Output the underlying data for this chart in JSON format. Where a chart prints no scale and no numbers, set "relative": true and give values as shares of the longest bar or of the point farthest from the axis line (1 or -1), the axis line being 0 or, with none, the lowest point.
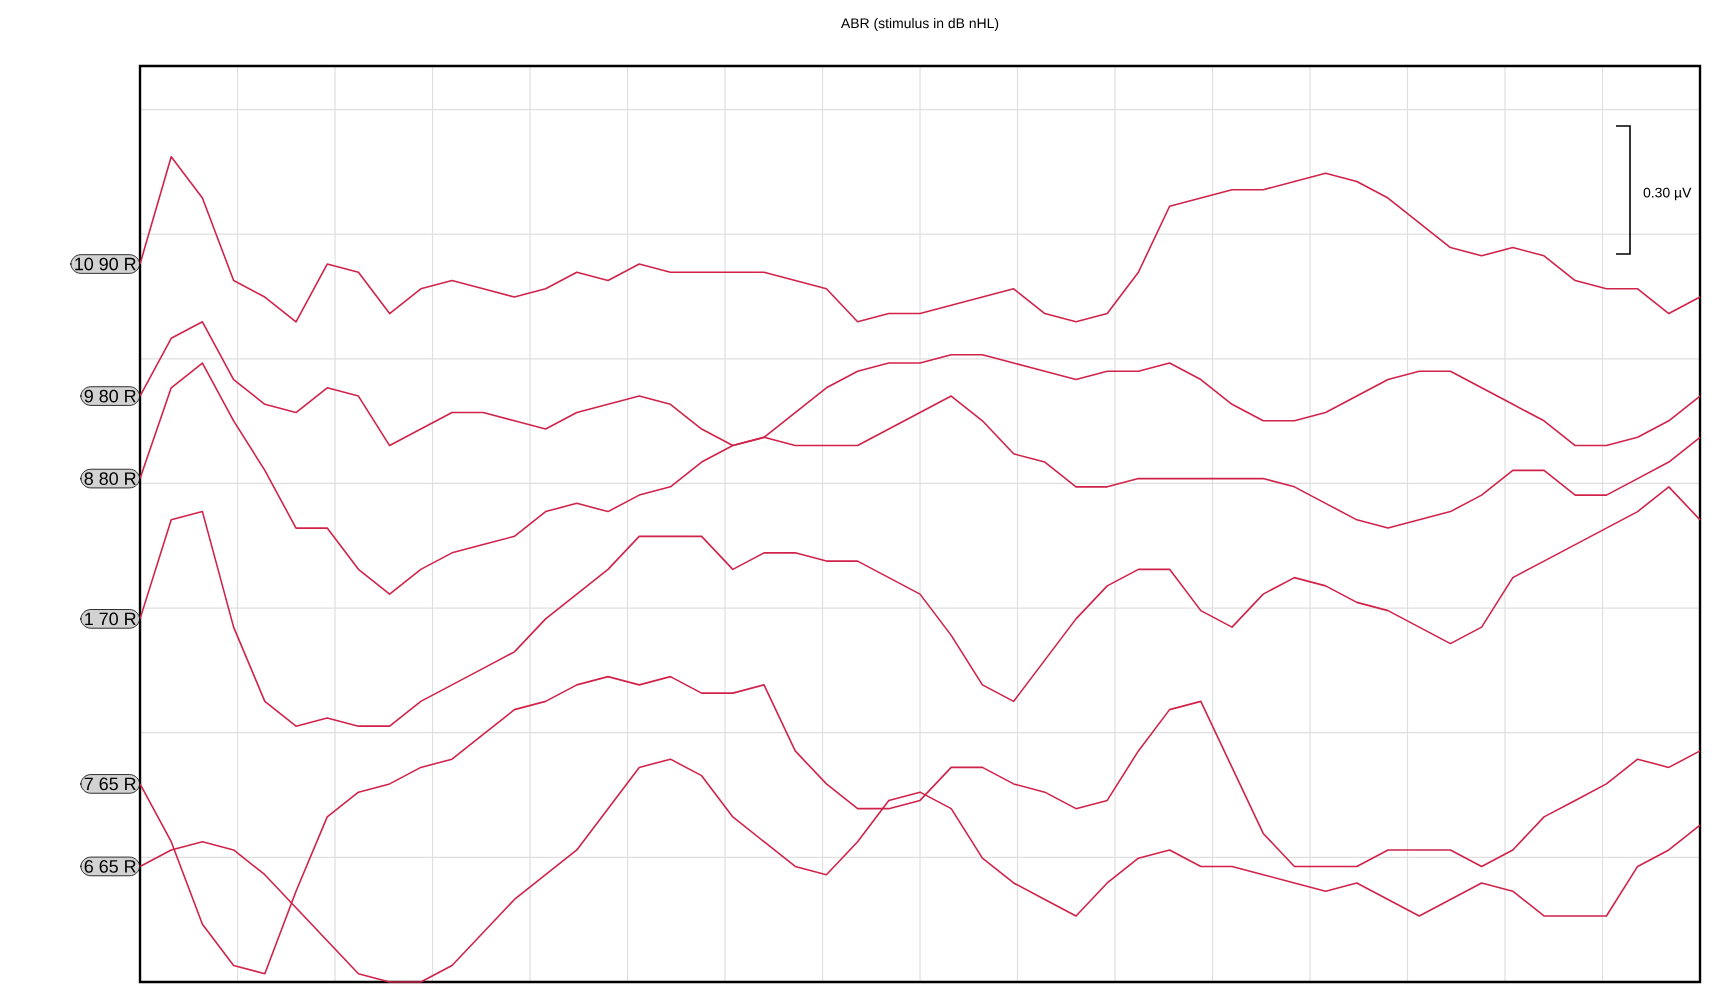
{
  "chart_data": {
    "type": "line",
    "title": "ABR (stimulus in dB nHL)",
    "relative": true,
    "grid": true,
    "legend": false,
    "marker": "none",
    "line_style": "solid",
    "annotations": [
      "0.30 µV"
    ],
    "categories": [
      null,
      null,
      null,
      null,
      null,
      null,
      null,
      null,
      null,
      null,
      null,
      null,
      null,
      null,
      null,
      null,
      null,
      null,
      null,
      null,
      null,
      null,
      null,
      null,
      null,
      null,
      null,
      null,
      null,
      null,
      null,
      null,
      null,
      null,
      null,
      null,
      null,
      null,
      null,
      null,
      null,
      null,
      null,
      null,
      null,
      null,
      null,
      null,
      null,
      null,
      null
    ],
    "series": [
      {
        "name": "10 90 R",
        "color": "#d0234a",
        "values": [
          0.87,
          1,
          0.95,
          0.85,
          0.83,
          0.8,
          0.87,
          0.86,
          0.81,
          0.84,
          0.85,
          0.84,
          0.83,
          0.84,
          0.86,
          0.85,
          0.87,
          0.86,
          0.86,
          0.86,
          0.86,
          0.85,
          0.84,
          0.8,
          0.81,
          0.81,
          0.82,
          0.83,
          0.84,
          0.81,
          0.8,
          0.81,
          0.86,
          0.94,
          0.95,
          0.96,
          0.96,
          0.97,
          0.98,
          0.97,
          0.95,
          0.92,
          0.89,
          0.88,
          0.89,
          0.88,
          0.85,
          0.84,
          0.84,
          0.81,
          0.83
        ]
      },
      {
        "name": "9 80 R",
        "color": "#d0234a",
        "values": [
          0.71,
          0.78,
          0.8,
          0.73,
          0.7,
          0.69,
          0.72,
          0.71,
          0.65,
          0.67,
          0.69,
          0.69,
          0.68,
          0.67,
          0.69,
          0.7,
          0.71,
          0.7,
          0.67,
          0.65,
          0.66,
          0.65,
          0.65,
          0.65,
          0.67,
          0.69,
          0.71,
          0.68,
          0.64,
          0.63,
          0.6,
          0.6,
          0.61,
          0.61,
          0.61,
          0.61,
          0.61,
          0.6,
          0.58,
          0.56,
          0.55,
          0.56,
          0.57,
          0.59,
          0.62,
          0.62,
          0.59,
          0.59,
          0.61,
          0.63,
          0.66
        ]
      },
      {
        "name": "8 80 R",
        "color": "#d0234a",
        "values": [
          0.61,
          0.72,
          0.75,
          0.68,
          0.62,
          0.55,
          0.55,
          0.5,
          0.47,
          0.5,
          0.52,
          0.53,
          0.54,
          0.57,
          0.58,
          0.57,
          0.59,
          0.6,
          0.63,
          0.65,
          0.66,
          0.69,
          0.72,
          0.74,
          0.75,
          0.75,
          0.76,
          0.76,
          0.75,
          0.74,
          0.73,
          0.74,
          0.74,
          0.75,
          0.73,
          0.7,
          0.68,
          0.68,
          0.69,
          0.71,
          0.73,
          0.74,
          0.74,
          0.72,
          0.7,
          0.68,
          0.65,
          0.65,
          0.66,
          0.68,
          0.71
        ]
      },
      {
        "name": "1 70 R",
        "color": "#d0234a",
        "values": [
          0.44,
          0.56,
          0.57,
          0.43,
          0.34,
          0.31,
          0.32,
          0.31,
          0.31,
          0.34,
          0.36,
          0.38,
          0.4,
          0.44,
          0.47,
          0.5,
          0.54,
          0.54,
          0.54,
          0.5,
          0.52,
          0.52,
          0.51,
          0.51,
          0.49,
          0.47,
          0.42,
          0.36,
          0.34,
          0.39,
          0.44,
          0.48,
          0.5,
          0.5,
          0.45,
          0.43,
          0.47,
          0.49,
          0.48,
          0.46,
          0.45,
          0.43,
          0.41,
          0.43,
          0.49,
          0.51,
          0.53,
          0.55,
          0.57,
          0.6,
          0.56
        ]
      },
      {
        "name": "7 65 R",
        "color": "#d0234a",
        "values": [
          0.24,
          0.17,
          0.07,
          0.02,
          0.01,
          0.11,
          0.2,
          0.23,
          0.24,
          0.26,
          0.27,
          0.3,
          0.33,
          0.34,
          0.36,
          0.37,
          0.36,
          0.37,
          0.35,
          0.35,
          0.36,
          0.28,
          0.24,
          0.21,
          0.21,
          0.22,
          0.26,
          0.26,
          0.24,
          0.23,
          0.21,
          0.22,
          0.28,
          0.33,
          0.34,
          0.26,
          0.18,
          0.14,
          0.14,
          0.14,
          0.16,
          0.16,
          0.16,
          0.14,
          0.16,
          0.2,
          0.22,
          0.24,
          0.27,
          0.26,
          0.28
        ]
      },
      {
        "name": "6 65 R",
        "color": "#d0234a",
        "values": [
          0.14,
          0.16,
          0.17,
          0.16,
          0.13,
          0.09,
          0.05,
          0.01,
          0,
          0,
          0.02,
          0.06,
          0.1,
          0.13,
          0.16,
          0.21,
          0.26,
          0.27,
          0.25,
          0.2,
          0.17,
          0.14,
          0.13,
          0.17,
          0.22,
          0.23,
          0.21,
          0.15,
          0.12,
          0.1,
          0.08,
          0.12,
          0.15,
          0.16,
          0.14,
          0.14,
          0.13,
          0.12,
          0.11,
          0.12,
          0.1,
          0.08,
          0.1,
          0.12,
          0.11,
          0.08,
          0.08,
          0.08,
          0.14,
          0.16,
          0.19
        ]
      }
    ]
  }
}
